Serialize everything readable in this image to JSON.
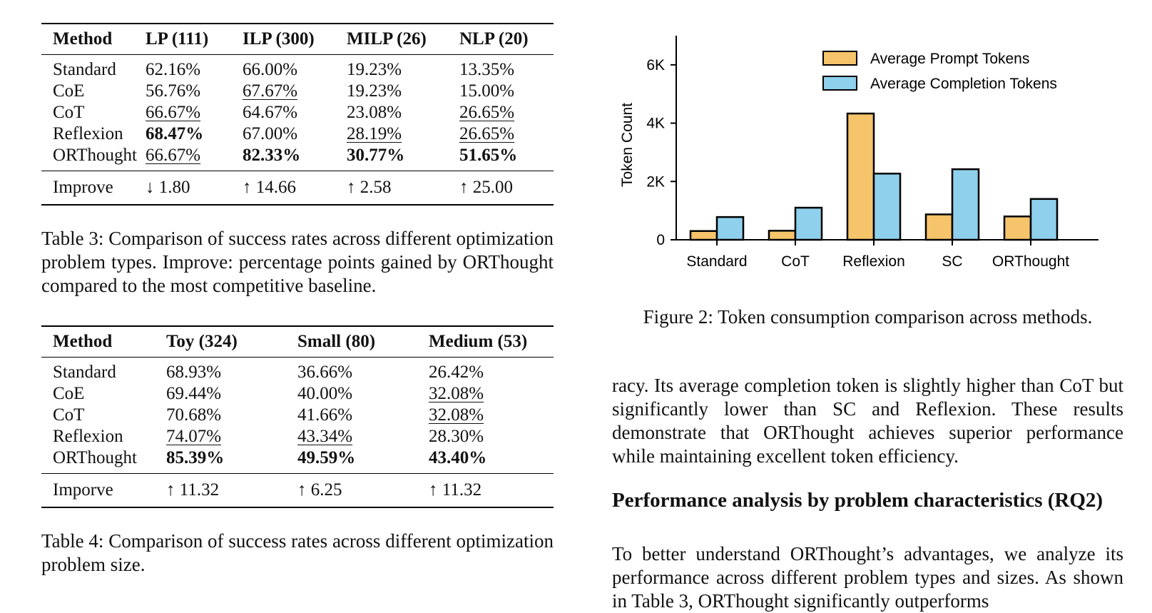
{
  "table3": {
    "headers": [
      "Method",
      "LP (111)",
      "ILP (300)",
      "MILP (26)",
      "NLP (20)"
    ],
    "rows": [
      [
        "Standard",
        "62.16%",
        "66.00%",
        "19.23%",
        "13.35%"
      ],
      [
        "CoE",
        "56.76%",
        "67.67%",
        "19.23%",
        "15.00%"
      ],
      [
        "CoT",
        "66.67%",
        "64.67%",
        "23.08%",
        "26.65%"
      ],
      [
        "Reflexion",
        "68.47%",
        "67.00%",
        "28.19%",
        "26.65%"
      ],
      [
        "ORThought",
        "66.67%",
        "82.33%",
        "30.77%",
        "51.65%"
      ]
    ],
    "improve": [
      "Improve",
      "↓ 1.80",
      "↑ 14.66",
      "↑ 2.58",
      "↑ 25.00"
    ],
    "caption": "Table 3: Comparison of success rates across different optimization problem types. Improve: percentage points gained by ORThought compared to the most competitive baseline."
  },
  "table4": {
    "headers": [
      "Method",
      "Toy (324)",
      "Small (80)",
      "Medium (53)"
    ],
    "rows": [
      [
        "Standard",
        "68.93%",
        "36.66%",
        "26.42%"
      ],
      [
        "CoE",
        "69.44%",
        "40.00%",
        "32.08%"
      ],
      [
        "CoT",
        "70.68%",
        "41.66%",
        "32.08%"
      ],
      [
        "Reflexion",
        "74.07%",
        "43.34%",
        "28.30%"
      ],
      [
        "ORThought",
        "85.39%",
        "49.59%",
        "43.40%"
      ]
    ],
    "improve": [
      "Imporve",
      "↑ 11.32",
      "↑ 6.25",
      "↑ 11.32"
    ],
    "caption": "Table 4: Comparison of success rates across different optimization problem size."
  },
  "chart_data": {
    "type": "bar",
    "categories": [
      "Standard",
      "CoT",
      "Reflexion",
      "SC",
      "ORThought"
    ],
    "series": [
      {
        "name": "Average Prompt Tokens",
        "color": "#f6c46a",
        "values": [
          300,
          310,
          4330,
          870,
          800
        ]
      },
      {
        "name": "Average Completion Tokens",
        "color": "#8fd0ec",
        "values": [
          780,
          1100,
          2270,
          2420,
          1400
        ]
      }
    ],
    "ylabel": "Token Count",
    "yticks": [
      "0",
      "2K",
      "4K",
      "6K"
    ],
    "ytick_values": [
      0,
      2000,
      4000,
      6000
    ],
    "ylim": [
      0,
      7000
    ],
    "legend_position": "top-right",
    "grid": false
  },
  "figure_caption": "Figure 2: Token consumption comparison across methods.",
  "paragraph1": "racy. Its average completion token is slightly higher than CoT but significantly lower than SC and Reflexion. These results demonstrate that ORThought achieves superior performance while maintaining excellent token efficiency.",
  "section_heading": "Performance analysis by problem characteristics (RQ2)",
  "paragraph2": "To better understand ORThought’s advantages, we analyze its performance across different problem types and sizes. As shown in Table 3, ORThought significantly outperforms"
}
